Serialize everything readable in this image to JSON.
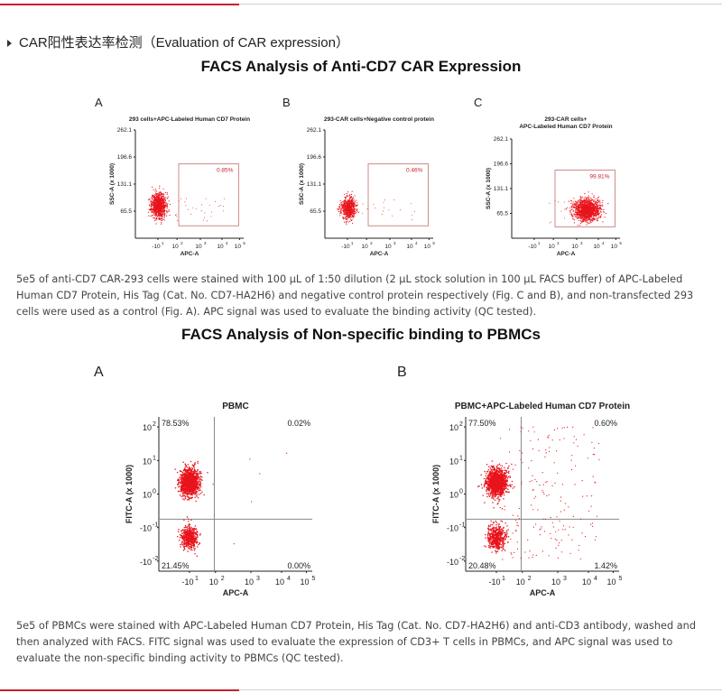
{
  "section": {
    "title": "CAR阳性表达率检测（Evaluation of CAR expression）"
  },
  "figure1": {
    "title": "FACS Analysis of Anti-CD7 CAR Expression",
    "caption": "5e5 of anti-CD7 CAR-293 cells were stained with 100 μL of 1:50 dilution (2 μL stock solution in 100 μL FACS buffer) of APC-Labeled Human CD7 Protein, His Tag (Cat. No. CD7-HA2H6) and negative control protein respectively (Fig. C and B), and non-transfected 293 cells were used as a control (Fig. A). APC signal was used to evaluate the binding activity (QC tested)."
  },
  "figure2": {
    "title": "FACS Analysis of Non-specific binding to PBMCs",
    "caption": "5e5 of PBMCs were stained with APC-Labeled Human CD7 Protein, His Tag (Cat. No. CD7-HA2H6) and anti-CD3 antibody, washed and then analyzed with FACS. FITC signal was used to evaluate the expression of CD3+ T cells in PBMCs, and APC signal was used to evaluate the non-specific binding activity to PBMCs (QC tested)."
  },
  "colors": {
    "accent": "#c8202a",
    "dot": "#e8141c",
    "gate": "#d08a8a"
  },
  "chart_data": [
    {
      "type": "scatter",
      "letter": "A",
      "title": "293 cells+APC-Labeled Human CD7 Protein",
      "xlabel": "APC-A",
      "ylabel": "SSC-A (x 1000)",
      "xlim": [
        -1.2,
        5.3
      ],
      "ylim": [
        0,
        262.1
      ],
      "yticks": [
        262.1,
        196.6,
        131.1,
        65.5
      ],
      "xticks": [
        [
          "-10",
          "1"
        ],
        [
          "10",
          "2"
        ],
        [
          "10",
          "3"
        ],
        [
          "10",
          "4"
        ],
        [
          "10",
          "5"
        ]
      ],
      "gate": {
        "x": [
          1.4,
          5.0
        ],
        "y": [
          30,
          180
        ],
        "label": "0.85%"
      },
      "clusters": [
        {
          "x": 0.2,
          "y": 80,
          "sx": 0.22,
          "sy": 15,
          "n": 900
        }
      ],
      "scatter_points": 28
    },
    {
      "type": "scatter",
      "letter": "B",
      "title": "293-CAR cells+Negative control protein",
      "xlabel": "APC-A",
      "ylabel": "SSC-A (x 1000)",
      "xlim": [
        -1.2,
        5.3
      ],
      "ylim": [
        0,
        262.1
      ],
      "yticks": [
        262.1,
        196.6,
        131.1,
        65.5
      ],
      "xticks": [
        [
          "-10",
          "1"
        ],
        [
          "10",
          "2"
        ],
        [
          "10",
          "3"
        ],
        [
          "10",
          "4"
        ],
        [
          "10",
          "5"
        ]
      ],
      "gate": {
        "x": [
          1.4,
          5.0
        ],
        "y": [
          30,
          180
        ],
        "label": "0.46%"
      },
      "clusters": [
        {
          "x": 0.2,
          "y": 72,
          "sx": 0.22,
          "sy": 13,
          "n": 650
        }
      ],
      "scatter_points": 18
    },
    {
      "type": "scatter",
      "letter": "C",
      "title": "293-CAR cells+\nAPC-Labeled Human CD7 Protein",
      "xlabel": "APC-A",
      "ylabel": "SSC-A (x 1000)",
      "xlim": [
        -1.2,
        5.3
      ],
      "ylim": [
        0,
        262.1
      ],
      "yticks": [
        262.1,
        196.6,
        131.1,
        65.5
      ],
      "xticks": [
        [
          "-10",
          "1"
        ],
        [
          "10",
          "2"
        ],
        [
          "10",
          "3"
        ],
        [
          "10",
          "4"
        ],
        [
          "10",
          "5"
        ]
      ],
      "gate": {
        "x": [
          1.4,
          5.0
        ],
        "y": [
          30,
          180
        ],
        "label": "99.81%"
      },
      "clusters": [
        {
          "x": 3.3,
          "y": 75,
          "sx": 0.38,
          "sy": 14,
          "n": 1400
        }
      ],
      "scatter_points": 22
    },
    {
      "type": "scatter",
      "letter": "A",
      "title": "PBMC",
      "xlabel": "APC-A",
      "ylabel": "FITC-A (x 1000)",
      "xlim": [
        -1.2,
        5.3
      ],
      "ylim": [
        -2.3,
        2.3
      ],
      "yticks": [
        [
          "10",
          "2"
        ],
        [
          "10",
          "1"
        ],
        [
          "10",
          "0"
        ],
        [
          "-10",
          "-1"
        ],
        [
          "-10",
          "-2"
        ]
      ],
      "xticks": [
        [
          "-10",
          "1"
        ],
        [
          "10",
          "2"
        ],
        [
          "10",
          "3"
        ],
        [
          "10",
          "4"
        ],
        [
          "10",
          "5"
        ]
      ],
      "quadrant": {
        "x": 1.15,
        "y": -0.75
      },
      "quadrant_labels": {
        "ul": "78.53%",
        "ur": "0.02%",
        "ll": "21.45%",
        "lr": "0.00%"
      },
      "clusters": [
        {
          "x": 0.1,
          "y": 0.35,
          "sx": 0.2,
          "sy": 0.2,
          "n": 1300
        },
        {
          "x": 0.1,
          "y": -1.3,
          "sx": 0.17,
          "sy": 0.17,
          "n": 500
        }
      ],
      "scatter_points": 6
    },
    {
      "type": "scatter",
      "letter": "B",
      "title": "PBMC+APC-Labeled Human CD7 Protein",
      "xlabel": "APC-A",
      "ylabel": "FITC-A (x 1000)",
      "xlim": [
        -1.2,
        5.3
      ],
      "ylim": [
        -2.3,
        2.3
      ],
      "yticks": [
        [
          "10",
          "2"
        ],
        [
          "10",
          "1"
        ],
        [
          "10",
          "0"
        ],
        [
          "-10",
          "-1"
        ],
        [
          "-10",
          "-2"
        ]
      ],
      "xticks": [
        [
          "-10",
          "1"
        ],
        [
          "10",
          "2"
        ],
        [
          "10",
          "3"
        ],
        [
          "10",
          "4"
        ],
        [
          "10",
          "5"
        ]
      ],
      "quadrant": {
        "x": 1.15,
        "y": -0.75
      },
      "quadrant_labels": {
        "ul": "77.50%",
        "ur": "0.60%",
        "ll": "20.48%",
        "lr": "1.42%"
      },
      "clusters": [
        {
          "x": 0.1,
          "y": 0.35,
          "sx": 0.22,
          "sy": 0.2,
          "n": 1300
        },
        {
          "x": 0.1,
          "y": -1.3,
          "sx": 0.2,
          "sy": 0.18,
          "n": 500
        }
      ],
      "scatter_points": 190
    }
  ]
}
